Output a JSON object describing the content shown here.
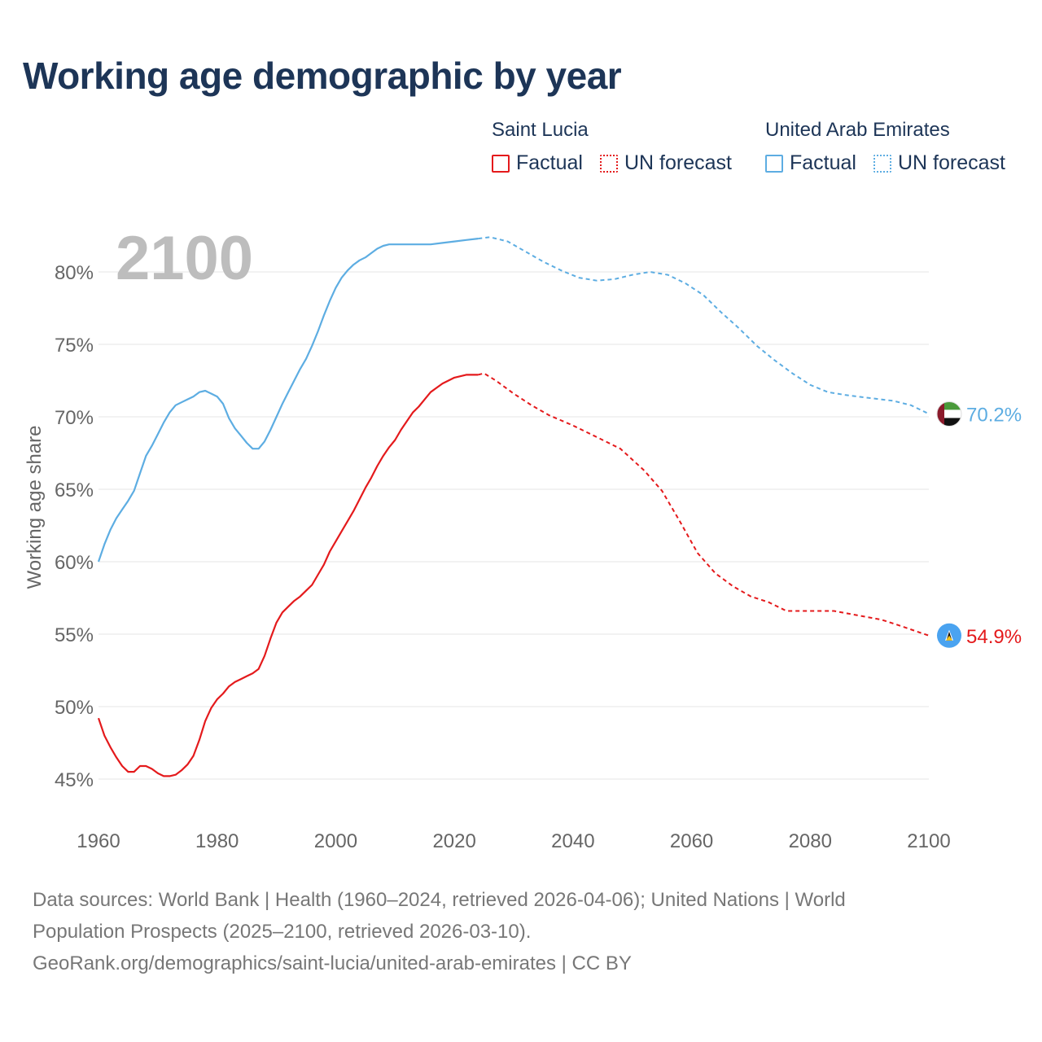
{
  "title": "Working age demographic by year",
  "legend": {
    "groups": [
      {
        "name": "Saint Lucia",
        "color": "#e41a1c",
        "factual_label": "Factual",
        "forecast_label": "UN forecast"
      },
      {
        "name": "United Arab Emirates",
        "color": "#5dade2",
        "factual_label": "Factual",
        "forecast_label": "UN forecast"
      }
    ]
  },
  "source": {
    "line1": "Data sources: World Bank | Health (1960–2024, retrieved 2026-04-06); United Nations | World",
    "line2": "Population Prospects (2025–2100, retrieved 2026-03-10).",
    "line3": "GeoRank.org/demographics/saint-lucia/united-arab-emirates | CC BY"
  },
  "chart_data": {
    "type": "line",
    "title": "Working age demographic by year",
    "xlabel": "",
    "ylabel": "Working age share",
    "xlim": [
      1960,
      2100
    ],
    "ylim": [
      43,
      86
    ],
    "xticks": [
      1960,
      1980,
      2000,
      2020,
      2040,
      2060,
      2080,
      2100
    ],
    "xtick_labels": [
      "1960",
      "1980",
      "2000",
      "2020",
      "2040",
      "2060",
      "2080",
      "2100"
    ],
    "yticks": [
      45,
      50,
      55,
      60,
      65,
      70,
      75,
      80
    ],
    "ytick_labels": [
      "45%",
      "50%",
      "55%",
      "60%",
      "65%",
      "70%",
      "75%",
      "80%"
    ],
    "grid": true,
    "year_watermark": "2100",
    "factual_end_year": 2024,
    "series": [
      {
        "name": "Saint Lucia",
        "color": "#e41a1c",
        "end_label": "54.9%",
        "flag": "saint-lucia",
        "points": [
          [
            1960,
            49.2
          ],
          [
            1961,
            48.0
          ],
          [
            1962,
            47.2
          ],
          [
            1963,
            46.5
          ],
          [
            1964,
            45.9
          ],
          [
            1965,
            45.5
          ],
          [
            1966,
            45.5
          ],
          [
            1967,
            45.9
          ],
          [
            1968,
            45.9
          ],
          [
            1969,
            45.7
          ],
          [
            1970,
            45.4
          ],
          [
            1971,
            45.2
          ],
          [
            1972,
            45.2
          ],
          [
            1973,
            45.3
          ],
          [
            1974,
            45.6
          ],
          [
            1975,
            46.0
          ],
          [
            1976,
            46.6
          ],
          [
            1977,
            47.7
          ],
          [
            1978,
            49.0
          ],
          [
            1979,
            49.9
          ],
          [
            1980,
            50.5
          ],
          [
            1981,
            50.9
          ],
          [
            1982,
            51.4
          ],
          [
            1983,
            51.7
          ],
          [
            1984,
            51.9
          ],
          [
            1985,
            52.1
          ],
          [
            1986,
            52.3
          ],
          [
            1987,
            52.6
          ],
          [
            1988,
            53.5
          ],
          [
            1989,
            54.7
          ],
          [
            1990,
            55.8
          ],
          [
            1991,
            56.5
          ],
          [
            1992,
            56.9
          ],
          [
            1993,
            57.3
          ],
          [
            1994,
            57.6
          ],
          [
            1995,
            58.0
          ],
          [
            1996,
            58.4
          ],
          [
            1997,
            59.1
          ],
          [
            1998,
            59.8
          ],
          [
            1999,
            60.7
          ],
          [
            2000,
            61.4
          ],
          [
            2001,
            62.1
          ],
          [
            2002,
            62.8
          ],
          [
            2003,
            63.5
          ],
          [
            2004,
            64.3
          ],
          [
            2005,
            65.1
          ],
          [
            2006,
            65.8
          ],
          [
            2007,
            66.6
          ],
          [
            2008,
            67.3
          ],
          [
            2009,
            67.9
          ],
          [
            2010,
            68.4
          ],
          [
            2011,
            69.1
          ],
          [
            2012,
            69.7
          ],
          [
            2013,
            70.3
          ],
          [
            2014,
            70.7
          ],
          [
            2015,
            71.2
          ],
          [
            2016,
            71.7
          ],
          [
            2017,
            72.0
          ],
          [
            2018,
            72.3
          ],
          [
            2019,
            72.5
          ],
          [
            2020,
            72.7
          ],
          [
            2021,
            72.8
          ],
          [
            2022,
            72.9
          ],
          [
            2023,
            72.9
          ],
          [
            2024,
            72.9
          ],
          [
            2025,
            73.0
          ],
          [
            2027,
            72.5
          ],
          [
            2030,
            71.6
          ],
          [
            2033,
            70.8
          ],
          [
            2036,
            70.1
          ],
          [
            2040,
            69.4
          ],
          [
            2044,
            68.6
          ],
          [
            2048,
            67.8
          ],
          [
            2052,
            66.3
          ],
          [
            2055,
            64.9
          ],
          [
            2058,
            62.8
          ],
          [
            2061,
            60.6
          ],
          [
            2064,
            59.2
          ],
          [
            2067,
            58.3
          ],
          [
            2070,
            57.6
          ],
          [
            2073,
            57.2
          ],
          [
            2076,
            56.6
          ],
          [
            2080,
            56.6
          ],
          [
            2084,
            56.6
          ],
          [
            2088,
            56.3
          ],
          [
            2092,
            56.0
          ],
          [
            2095,
            55.6
          ],
          [
            2100,
            54.9
          ]
        ]
      },
      {
        "name": "United Arab Emirates",
        "color": "#5dade2",
        "end_label": "70.2%",
        "flag": "united-arab-emirates",
        "points": [
          [
            1960,
            60.0
          ],
          [
            1961,
            61.2
          ],
          [
            1962,
            62.2
          ],
          [
            1963,
            63.0
          ],
          [
            1964,
            63.6
          ],
          [
            1965,
            64.2
          ],
          [
            1966,
            64.9
          ],
          [
            1967,
            66.1
          ],
          [
            1968,
            67.3
          ],
          [
            1969,
            68.0
          ],
          [
            1970,
            68.8
          ],
          [
            1971,
            69.6
          ],
          [
            1972,
            70.3
          ],
          [
            1973,
            70.8
          ],
          [
            1974,
            71.0
          ],
          [
            1975,
            71.2
          ],
          [
            1976,
            71.4
          ],
          [
            1977,
            71.7
          ],
          [
            1978,
            71.8
          ],
          [
            1979,
            71.6
          ],
          [
            1980,
            71.4
          ],
          [
            1981,
            70.9
          ],
          [
            1982,
            69.9
          ],
          [
            1983,
            69.2
          ],
          [
            1984,
            68.7
          ],
          [
            1985,
            68.2
          ],
          [
            1986,
            67.8
          ],
          [
            1987,
            67.8
          ],
          [
            1988,
            68.3
          ],
          [
            1989,
            69.1
          ],
          [
            1990,
            70.0
          ],
          [
            1991,
            70.9
          ],
          [
            1992,
            71.7
          ],
          [
            1993,
            72.5
          ],
          [
            1994,
            73.3
          ],
          [
            1995,
            74.0
          ],
          [
            1996,
            74.9
          ],
          [
            1997,
            75.9
          ],
          [
            1998,
            77.0
          ],
          [
            1999,
            78.0
          ],
          [
            2000,
            78.9
          ],
          [
            2001,
            79.6
          ],
          [
            2002,
            80.1
          ],
          [
            2003,
            80.5
          ],
          [
            2004,
            80.8
          ],
          [
            2005,
            81.0
          ],
          [
            2006,
            81.3
          ],
          [
            2007,
            81.6
          ],
          [
            2008,
            81.8
          ],
          [
            2009,
            81.9
          ],
          [
            2010,
            81.9
          ],
          [
            2012,
            81.9
          ],
          [
            2014,
            81.9
          ],
          [
            2016,
            81.9
          ],
          [
            2018,
            82.0
          ],
          [
            2020,
            82.1
          ],
          [
            2022,
            82.2
          ],
          [
            2024,
            82.3
          ],
          [
            2026,
            82.4
          ],
          [
            2029,
            82.1
          ],
          [
            2032,
            81.4
          ],
          [
            2035,
            80.7
          ],
          [
            2038,
            80.1
          ],
          [
            2041,
            79.6
          ],
          [
            2044,
            79.4
          ],
          [
            2047,
            79.5
          ],
          [
            2050,
            79.8
          ],
          [
            2053,
            80.0
          ],
          [
            2056,
            79.8
          ],
          [
            2059,
            79.2
          ],
          [
            2062,
            78.4
          ],
          [
            2065,
            77.2
          ],
          [
            2068,
            76.1
          ],
          [
            2071,
            74.9
          ],
          [
            2074,
            73.9
          ],
          [
            2077,
            73.0
          ],
          [
            2080,
            72.2
          ],
          [
            2083,
            71.7
          ],
          [
            2086,
            71.5
          ],
          [
            2090,
            71.3
          ],
          [
            2094,
            71.1
          ],
          [
            2097,
            70.8
          ],
          [
            2100,
            70.2
          ]
        ]
      }
    ]
  }
}
